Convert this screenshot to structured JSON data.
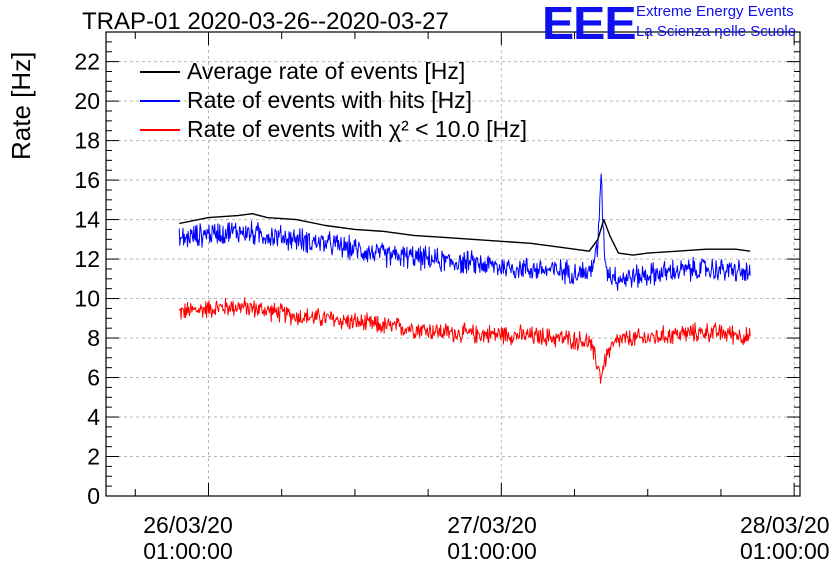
{
  "title": "TRAP-01 2020-03-26--2020-03-27",
  "logo": {
    "mark": "EEE",
    "line1": "Extreme Energy Events",
    "line2": "La Scienza nelle Scuole",
    "color": "#1010ee"
  },
  "chart_data": {
    "type": "line",
    "ylabel": "Rate [Hz]",
    "xlabel": "",
    "ylim": [
      0,
      23.5
    ],
    "xlim": [
      -0.35,
      2.02
    ],
    "y_ticks": [
      0,
      2,
      4,
      6,
      8,
      10,
      12,
      14,
      16,
      18,
      20,
      22
    ],
    "x_ticks": [
      {
        "value": 0,
        "date": "26/03/20",
        "time": "01:00:00"
      },
      {
        "value": 1,
        "date": "27/03/20",
        "time": "01:00:00"
      },
      {
        "value": 2,
        "date": "28/03/20",
        "time": "01:00:00"
      }
    ],
    "x_unit_note_hidden": "",
    "grid": true,
    "legend_placement": "top-left",
    "series": [
      {
        "name": "Average rate of events [Hz]",
        "color": "#000000",
        "x": [
          -0.1,
          0.0,
          0.1,
          0.15,
          0.2,
          0.3,
          0.4,
          0.5,
          0.6,
          0.7,
          0.8,
          0.9,
          1.0,
          1.1,
          1.2,
          1.3,
          1.33,
          1.35,
          1.37,
          1.4,
          1.45,
          1.5,
          1.6,
          1.7,
          1.8,
          1.85
        ],
        "y": [
          13.8,
          14.1,
          14.2,
          14.3,
          14.1,
          14.0,
          13.7,
          13.5,
          13.4,
          13.2,
          13.1,
          13.0,
          12.9,
          12.8,
          12.6,
          12.4,
          13.0,
          14.0,
          13.2,
          12.3,
          12.2,
          12.3,
          12.4,
          12.5,
          12.5,
          12.4
        ]
      },
      {
        "name": "Rate of events with hits [Hz]",
        "color": "#0000ff",
        "x": [
          -0.1,
          0.0,
          0.1,
          0.2,
          0.3,
          0.4,
          0.5,
          0.6,
          0.7,
          0.8,
          0.9,
          1.0,
          1.1,
          1.2,
          1.3,
          1.33,
          1.34,
          1.35,
          1.36,
          1.4,
          1.5,
          1.6,
          1.7,
          1.8,
          1.85
        ],
        "y": [
          13.0,
          13.3,
          13.4,
          13.2,
          13.0,
          12.8,
          12.5,
          12.2,
          12.1,
          11.9,
          11.8,
          11.6,
          11.5,
          11.4,
          11.3,
          12.5,
          16.5,
          13.0,
          11.4,
          11.0,
          11.2,
          11.4,
          11.5,
          11.4,
          11.2
        ],
        "noise": 0.55
      },
      {
        "name": "Rate of events with χ² < 10.0 [Hz]",
        "color": "#ff0000",
        "x": [
          -0.1,
          0.0,
          0.1,
          0.2,
          0.3,
          0.4,
          0.5,
          0.6,
          0.7,
          0.8,
          0.9,
          1.0,
          1.1,
          1.2,
          1.3,
          1.33,
          1.34,
          1.36,
          1.4,
          1.5,
          1.6,
          1.7,
          1.8,
          1.85
        ],
        "y": [
          9.3,
          9.5,
          9.6,
          9.4,
          9.1,
          9.0,
          8.8,
          8.6,
          8.5,
          8.3,
          8.2,
          8.2,
          8.1,
          8.0,
          7.8,
          6.6,
          6.0,
          7.2,
          7.9,
          8.0,
          8.2,
          8.3,
          8.2,
          8.0
        ],
        "noise": 0.45
      }
    ]
  }
}
